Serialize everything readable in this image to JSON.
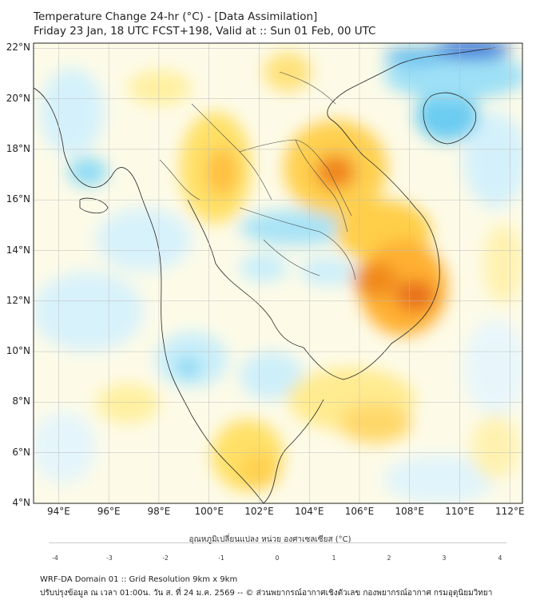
{
  "title_line1": "Temperature Change 24-hr (°C) - [Data Assimilation]",
  "title_line2": "Friday 23 Jan, 18 UTC FCST+198, Valid at :: Sun 01 Feb, 00 UTC",
  "lat_labels": [
    "22°N",
    "20°N",
    "18°N",
    "16°N",
    "14°N",
    "12°N",
    "10°N",
    "8°N",
    "6°N",
    "4°N"
  ],
  "lon_labels": [
    "94°E",
    "96°E",
    "98°E",
    "100°E",
    "102°E",
    "104°E",
    "106°E",
    "108°E",
    "110°E",
    "112°E"
  ],
  "colorbar": {
    "title": "อุณหภูมิเปลี่ยนแปลง หน่วย องศาเซลเซียส (°C)",
    "ticks": [
      "-4",
      "-3",
      "-2",
      "-1",
      "0",
      "1",
      "2",
      "3",
      "4"
    ]
  },
  "footer_line1": "WRF-DA Domain 01 :: Grid Resolution 9km x 9km",
  "footer_line2": "ปรับปรุงข้อมูล ณ เวลา 01:00น. วัน ส. ที่ 24 ม.ค. 2569 -- © ส่วนพยากรณ์อากาศเชิงตัวเลข กองพยากรณ์อากาศ กรมอุตุนิยมวิทยา",
  "colors": {
    "cold_max": "#1a1a8c",
    "cold": "#3fb8ec",
    "neutral": "#ffffff",
    "warm": "#ffe066",
    "hot": "#f07a10",
    "hot_max": "#8a1010"
  }
}
